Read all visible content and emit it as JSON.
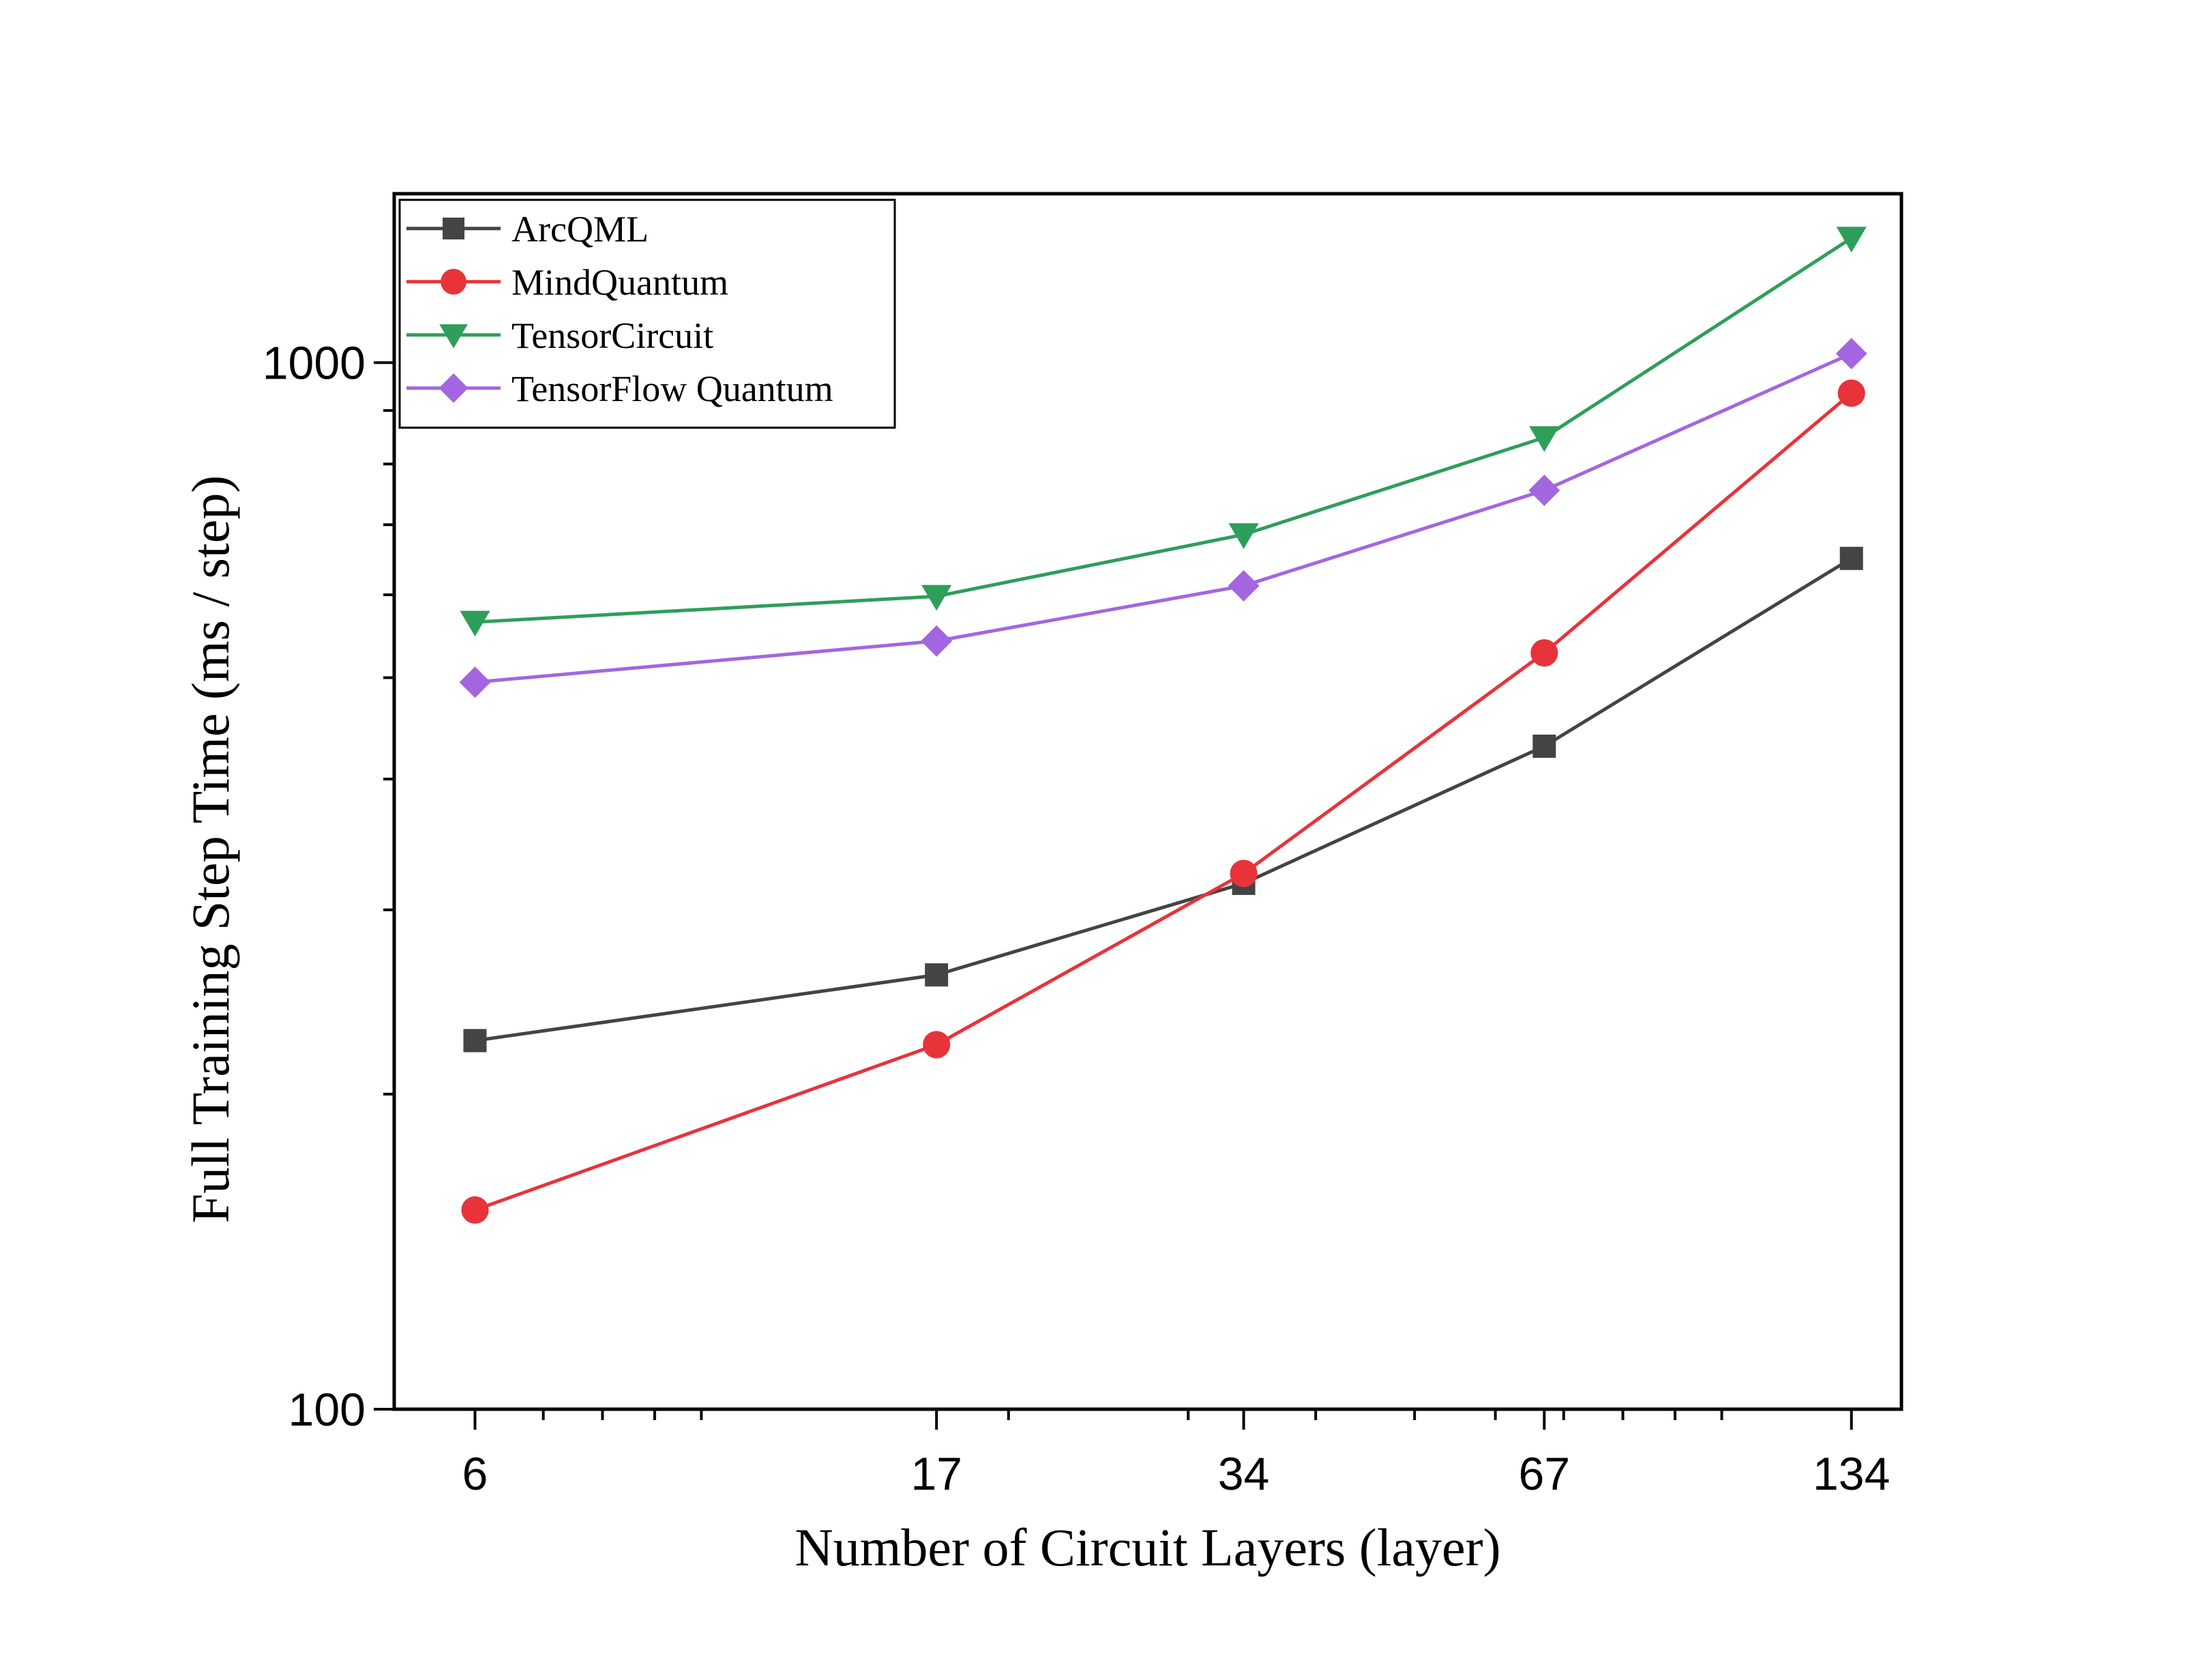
{
  "chart_data": {
    "type": "line",
    "xlabel": "Number of Circuit Layers (layer)",
    "ylabel": "Full Training Step Time (ms / step)",
    "x_scale": "log",
    "y_scale": "log",
    "x": [
      6,
      17,
      34,
      67,
      134
    ],
    "x_tick_labels": [
      "6",
      "17",
      "34",
      "67",
      "134"
    ],
    "xlim": [
      5,
      150
    ],
    "y_ticks": [
      100,
      1000
    ],
    "y_tick_labels": [
      "100",
      "1000"
    ],
    "ylim": [
      100,
      1450
    ],
    "legend_position": "top-left",
    "series": [
      {
        "name": "ArcQML",
        "color": "#444444",
        "marker": "square",
        "values": [
          225,
          260,
          318,
          430,
          650
        ]
      },
      {
        "name": "MindQuantum",
        "color": "#e8333a",
        "marker": "circle",
        "values": [
          155,
          223,
          325,
          528,
          935
        ]
      },
      {
        "name": "TensorCircuit",
        "color": "#2e9e5b",
        "marker": "triangle-down",
        "values": [
          565,
          598,
          685,
          848,
          1315
        ]
      },
      {
        "name": "TensorFlow Quantum",
        "color": "#a366e0",
        "marker": "diamond",
        "values": [
          495,
          542,
          612,
          755,
          1020
        ]
      }
    ]
  }
}
